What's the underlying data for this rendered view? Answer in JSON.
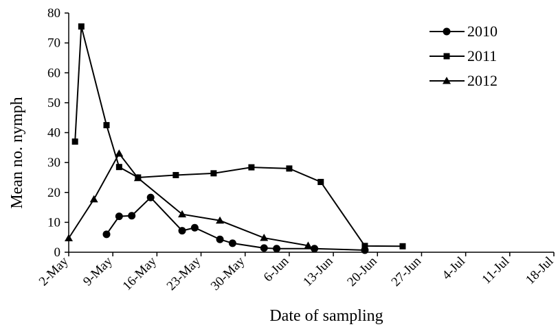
{
  "chart_data": {
    "type": "line",
    "title": "",
    "xlabel": "Date of sampling",
    "ylabel": "Mean no. nymph",
    "ylim": [
      0,
      80
    ],
    "xlim": [
      "2-May",
      "18-Jul"
    ],
    "yticks": [
      "0",
      "10",
      "20",
      "30",
      "40",
      "50",
      "60",
      "70",
      "80"
    ],
    "xticks": [
      "2-May",
      "9-May",
      "16-May",
      "23-May",
      "30-May",
      "6-Jun",
      "13-Jun",
      "20-Jun",
      "27-Jun",
      "4-Jul",
      "11-Jul",
      "18-Jul"
    ],
    "grid": false,
    "legend_position": "top-right",
    "series": [
      {
        "name": "2010",
        "marker": "circle",
        "color": "#000000",
        "x": [
          "8-May",
          "10-May",
          "12-May",
          "15-May",
          "20-May",
          "22-May",
          "26-May",
          "28-May",
          "2-Jun",
          "4-Jun",
          "10-Jun",
          "18-Jun"
        ],
        "y": [
          6,
          12,
          12.2,
          18.3,
          7.2,
          8.2,
          4.3,
          3,
          1.4,
          1.2,
          1.2,
          0.7
        ]
      },
      {
        "name": "2011",
        "marker": "square",
        "color": "#000000",
        "x": [
          "3-May",
          "4-May",
          "8-May",
          "10-May",
          "13-May",
          "19-May",
          "25-May",
          "31-May",
          "6-Jun",
          "11-Jun",
          "18-Jun",
          "24-Jun"
        ],
        "y": [
          37,
          75.5,
          42.5,
          28.5,
          25,
          25.8,
          26.4,
          28.4,
          28,
          23.5,
          2.1,
          2
        ]
      },
      {
        "name": "2012",
        "marker": "triangle",
        "color": "#000000",
        "x": [
          "2-May",
          "6-May",
          "10-May",
          "13-May",
          "20-May",
          "26-May",
          "2-Jun",
          "9-Jun"
        ],
        "y": [
          4.7,
          17.7,
          33,
          24.8,
          12.7,
          10.6,
          4.8,
          2.2
        ]
      }
    ]
  }
}
